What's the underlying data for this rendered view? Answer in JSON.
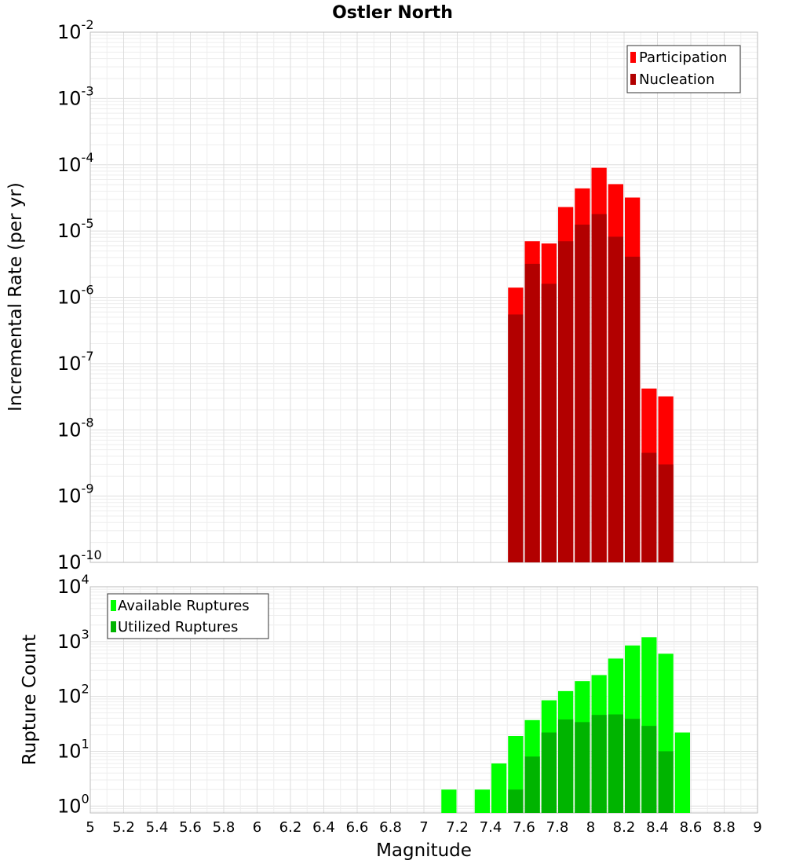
{
  "chart_data": [
    {
      "type": "bar",
      "title": "Ostler North",
      "xlabel": "Magnitude",
      "ylabel": "Incremental Rate (per yr)",
      "xlim": [
        5,
        9
      ],
      "ylim": [
        1e-10,
        0.01
      ],
      "yscale": "log",
      "grid": true,
      "legend_position": "top-right",
      "x": [
        7.55,
        7.65,
        7.75,
        7.85,
        7.95,
        8.05,
        8.15,
        8.25,
        8.35,
        8.45
      ],
      "series": [
        {
          "name": "Participation",
          "color": "#ff0000",
          "values": [
            1.4e-06,
            7e-06,
            6.5e-06,
            2.3e-05,
            4.4e-05,
            9e-05,
            5.1e-05,
            3.2e-05,
            4.2e-08,
            3.2e-08
          ]
        },
        {
          "name": "Nucleation",
          "color": "#b20000",
          "values": [
            5.5e-07,
            3.2e-06,
            1.6e-06,
            7e-06,
            1.25e-05,
            1.8e-05,
            8.2e-06,
            4.1e-06,
            4.5e-09,
            3e-09
          ]
        }
      ],
      "yticks": [
        {
          "base": "10",
          "exp": "-10"
        },
        {
          "base": "10",
          "exp": "-9"
        },
        {
          "base": "10",
          "exp": "-8"
        },
        {
          "base": "10",
          "exp": "-7"
        },
        {
          "base": "10",
          "exp": "-6"
        },
        {
          "base": "10",
          "exp": "-5"
        },
        {
          "base": "10",
          "exp": "-4"
        },
        {
          "base": "10",
          "exp": "-3"
        },
        {
          "base": "10",
          "exp": "-2"
        }
      ]
    },
    {
      "type": "bar",
      "xlabel": "Magnitude",
      "ylabel": "Rupture Count",
      "xlim": [
        5,
        9
      ],
      "ylim": [
        0.75,
        10000.0
      ],
      "yscale": "log",
      "grid": true,
      "legend_position": "top-left",
      "x": [
        7.15,
        7.35,
        7.45,
        7.55,
        7.65,
        7.75,
        7.85,
        7.95,
        8.05,
        8.15,
        8.25,
        8.35,
        8.45,
        8.55
      ],
      "series": [
        {
          "name": "Available Ruptures",
          "color": "#00ff00",
          "values": [
            2,
            2,
            6,
            19,
            37,
            85,
            125,
            190,
            245,
            490,
            850,
            1200,
            600,
            22
          ]
        },
        {
          "name": "Utilized Ruptures",
          "color": "#00b400",
          "values": [
            0,
            0,
            0,
            2,
            8,
            22,
            38,
            34,
            46,
            47,
            39,
            29,
            10,
            0
          ]
        }
      ],
      "yticks": [
        {
          "base": "10",
          "exp": "0"
        },
        {
          "base": "10",
          "exp": "1"
        },
        {
          "base": "10",
          "exp": "2"
        },
        {
          "base": "10",
          "exp": "3"
        },
        {
          "base": "10",
          "exp": "4"
        }
      ]
    }
  ],
  "xticks": [
    "5",
    "5.2",
    "5.4",
    "5.6",
    "5.8",
    "6",
    "6.2",
    "6.4",
    "6.6",
    "6.8",
    "7",
    "7.2",
    "7.4",
    "7.6",
    "7.8",
    "8",
    "8.2",
    "8.4",
    "8.6",
    "8.8",
    "9"
  ]
}
